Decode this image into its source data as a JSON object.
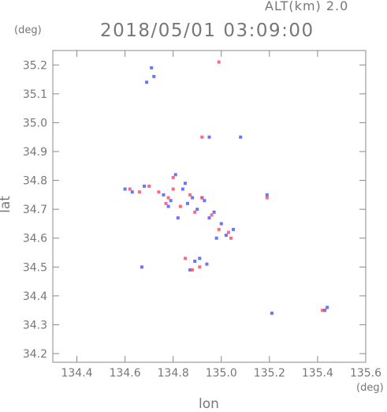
{
  "header": {
    "altitude": "ALT(km)  2.0",
    "datetime": "2018/05/01 03:09:00"
  },
  "colors": {
    "axis": "#888888",
    "text": "#777777",
    "positive": "#ff4f6b",
    "negative": "#4c5dff"
  },
  "chart_data": {
    "type": "scatter",
    "title": "2018/05/01 03:09:00",
    "subtitle": "ALT(km)  2.0",
    "xlabel": "lon",
    "ylabel": "lat",
    "xunit": "(deg)",
    "yunit": "(deg)",
    "xlim": [
      134.3,
      135.6
    ],
    "ylim": [
      34.17,
      35.25
    ],
    "xticks": [
      134.4,
      134.6,
      134.8,
      135.0,
      135.2,
      135.4,
      135.6
    ],
    "xtick_labels": [
      "134.4",
      "134.6",
      "134.8",
      "135.0",
      "135.2",
      "135.4",
      "135.6"
    ],
    "yticks": [
      34.2,
      34.3,
      34.4,
      34.5,
      34.6,
      34.7,
      34.8,
      34.9,
      35.0,
      35.1,
      35.2
    ],
    "ytick_labels": [
      "34.2",
      "34.3",
      "34.4",
      "34.5",
      "34.6",
      "34.7",
      "34.8",
      "34.9",
      "35.0",
      "35.1",
      "35.2"
    ],
    "grid": false,
    "series": [
      {
        "color": "#4c5dff",
        "x": [
          134.6,
          134.63,
          134.68,
          134.72,
          134.76,
          134.79,
          134.81,
          134.84,
          134.86,
          134.88,
          134.9,
          134.93,
          134.95,
          134.97,
          135.0,
          135.02,
          135.05,
          134.98,
          134.94,
          134.91,
          134.87,
          134.82,
          134.78,
          134.69,
          134.71,
          135.44,
          135.43,
          135.21,
          134.67,
          134.95,
          135.08,
          135.19,
          134.92,
          134.89,
          134.85
        ],
        "y": [
          34.77,
          34.76,
          34.78,
          35.16,
          34.75,
          34.73,
          34.82,
          34.77,
          34.72,
          34.74,
          34.7,
          34.73,
          34.67,
          34.69,
          34.65,
          34.61,
          34.63,
          34.6,
          34.51,
          34.53,
          34.49,
          34.67,
          34.71,
          35.14,
          35.19,
          34.36,
          34.35,
          34.34,
          34.5,
          34.95,
          34.95,
          34.75,
          34.74,
          34.52,
          34.79
        ]
      },
      {
        "color": "#ff4f6b",
        "x": [
          134.62,
          134.66,
          134.74,
          134.78,
          134.8,
          134.83,
          134.87,
          134.89,
          134.92,
          134.96,
          134.99,
          135.03,
          134.91,
          134.88,
          134.85,
          134.8,
          134.77,
          134.99,
          134.92,
          135.04,
          135.19,
          135.42,
          134.7
        ],
        "y": [
          34.77,
          34.76,
          34.76,
          34.74,
          34.81,
          34.71,
          34.75,
          34.69,
          34.74,
          34.68,
          34.63,
          34.62,
          34.5,
          34.49,
          34.53,
          34.77,
          34.72,
          35.21,
          34.95,
          34.6,
          34.74,
          34.35,
          34.78
        ]
      }
    ]
  }
}
